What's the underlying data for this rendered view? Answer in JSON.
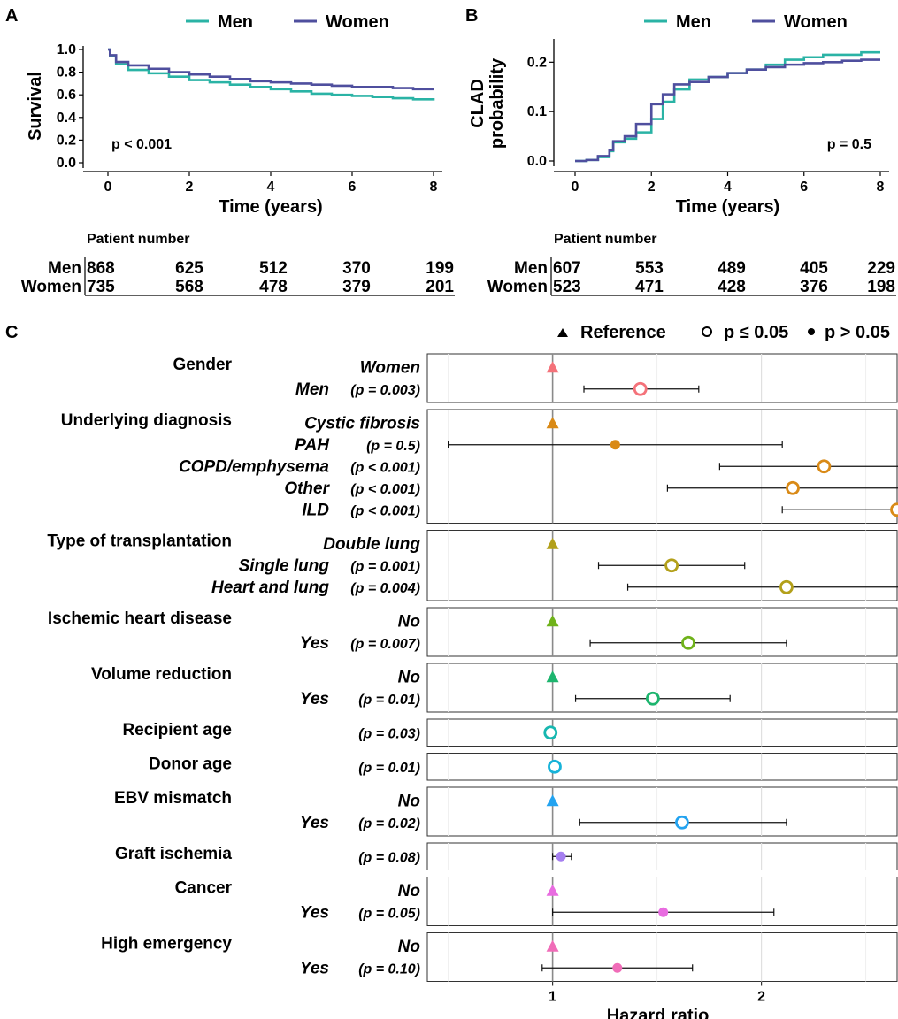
{
  "panels": {
    "A": {
      "letter": "A",
      "chart_data": {
        "type": "line",
        "xlabel": "Time (years)",
        "ylabel": "Survival",
        "xlim": [
          0,
          8
        ],
        "ylim": [
          0,
          1.0
        ],
        "x_ticks": [
          "0",
          "2",
          "4",
          "6",
          "8"
        ],
        "y_ticks": [
          "0.0",
          "0.2",
          "0.4",
          "0.6",
          "0.8",
          "1.0"
        ],
        "annotation": "p < 0.001",
        "legend": [
          "Men",
          "Women"
        ],
        "series": [
          {
            "name": "Men",
            "color": "#2ab3a5",
            "x": [
              0,
              0.05,
              0.2,
              0.5,
              1,
              1.5,
              2,
              2.5,
              3,
              3.5,
              4,
              4.5,
              5,
              5.5,
              6,
              6.5,
              7,
              7.5,
              8
            ],
            "y": [
              1.0,
              0.94,
              0.87,
              0.82,
              0.79,
              0.76,
              0.73,
              0.71,
              0.69,
              0.67,
              0.65,
              0.63,
              0.61,
              0.6,
              0.59,
              0.58,
              0.57,
              0.56,
              0.55
            ]
          },
          {
            "name": "Women",
            "color": "#4f4f9e",
            "x": [
              0,
              0.05,
              0.2,
              0.5,
              1,
              1.5,
              2,
              2.5,
              3,
              3.5,
              4,
              4.5,
              5,
              5.5,
              6,
              6.5,
              7,
              7.5,
              8
            ],
            "y": [
              1.0,
              0.95,
              0.89,
              0.86,
              0.83,
              0.8,
              0.78,
              0.76,
              0.74,
              0.72,
              0.71,
              0.7,
              0.69,
              0.68,
              0.67,
              0.67,
              0.66,
              0.65,
              0.65
            ]
          }
        ]
      },
      "risk_table": {
        "title": "Patient number",
        "rows": [
          {
            "label": "Men",
            "values": [
              "868",
              "625",
              "512",
              "370",
              "199"
            ]
          },
          {
            "label": "Women",
            "values": [
              "735",
              "568",
              "478",
              "379",
              "201"
            ]
          }
        ]
      }
    },
    "B": {
      "letter": "B",
      "chart_data": {
        "type": "line",
        "xlabel": "Time (years)",
        "ylabel_lines": [
          "CLAD",
          "probability"
        ],
        "xlim": [
          0,
          8
        ],
        "ylim": [
          0,
          0.24
        ],
        "x_ticks": [
          "0",
          "2",
          "4",
          "6",
          "8"
        ],
        "y_ticks": [
          "0.0",
          "0.1",
          "0.2"
        ],
        "annotation": "p = 0.5",
        "legend": [
          "Men",
          "Women"
        ],
        "series": [
          {
            "name": "Men",
            "color": "#2ab3a5",
            "x": [
              0,
              0.3,
              0.6,
              0.9,
              1.0,
              1.3,
              1.6,
              2.0,
              2.3,
              2.6,
              3.0,
              3.5,
              4.0,
              4.5,
              5.0,
              5.5,
              6.0,
              6.5,
              7.0,
              7.5,
              8.0
            ],
            "y": [
              0,
              0.002,
              0.008,
              0.02,
              0.038,
              0.045,
              0.058,
              0.085,
              0.12,
              0.145,
              0.165,
              0.17,
              0.178,
              0.185,
              0.195,
              0.205,
              0.21,
              0.215,
              0.215,
              0.22,
              0.22
            ]
          },
          {
            "name": "Women",
            "color": "#4f4f9e",
            "x": [
              0,
              0.3,
              0.6,
              0.9,
              1.0,
              1.3,
              1.6,
              2.0,
              2.3,
              2.6,
              3.0,
              3.5,
              4.0,
              4.5,
              5.0,
              5.5,
              6.0,
              6.5,
              7.0,
              7.5,
              8.0
            ],
            "y": [
              0,
              0.002,
              0.01,
              0.022,
              0.04,
              0.05,
              0.075,
              0.115,
              0.135,
              0.155,
              0.16,
              0.17,
              0.178,
              0.185,
              0.19,
              0.195,
              0.198,
              0.2,
              0.203,
              0.205,
              0.205
            ]
          }
        ]
      },
      "risk_table": {
        "title": "Patient number",
        "rows": [
          {
            "label": "Men",
            "values": [
              "607",
              "553",
              "489",
              "405",
              "229"
            ]
          },
          {
            "label": "Women",
            "values": [
              "523",
              "471",
              "428",
              "376",
              "198"
            ]
          }
        ]
      }
    },
    "C": {
      "letter": "C",
      "chart_data": {
        "type": "scatter",
        "subtype": "forest",
        "xlabel": "Hazard ratio",
        "xlim": [
          0.4,
          2.65
        ],
        "x_ticks": [
          "1",
          "2"
        ],
        "reference_line": 1,
        "legend": [
          "Reference",
          "p ≤ 0.05",
          "p > 0.05"
        ],
        "groups": [
          {
            "name": "Gender",
            "color": "#f4727a",
            "rows": [
              {
                "label": "Women",
                "p": "",
                "ref": true,
                "hr": 1
              },
              {
                "label": "Men",
                "p": "(p = 0.003)",
                "hr": 1.42,
                "lo": 1.15,
                "hi": 1.7,
                "sig": true
              }
            ]
          },
          {
            "name": "Underlying diagnosis",
            "color": "#d98a17",
            "rows": [
              {
                "label": "Cystic fibrosis",
                "p": "",
                "ref": true,
                "hr": 1
              },
              {
                "label": "PAH",
                "p": "(p = 0.5)",
                "hr": 1.3,
                "lo": 0.5,
                "hi": 2.1,
                "sig": false
              },
              {
                "label": "COPD/emphysema",
                "p": "(p < 0.001)",
                "hr": 2.3,
                "lo": 1.8,
                "hi": 2.8,
                "sig": true
              },
              {
                "label": "Other",
                "p": "(p < 0.001)",
                "hr": 2.15,
                "lo": 1.55,
                "hi": 2.75,
                "sig": true
              },
              {
                "label": "ILD",
                "p": "(p < 0.001)",
                "hr": 2.65,
                "lo": 2.1,
                "hi": 3.15,
                "sig": true
              }
            ]
          },
          {
            "name": "Type of transplantation",
            "color": "#b3a01a",
            "rows": [
              {
                "label": "Double lung",
                "p": "",
                "ref": true,
                "hr": 1
              },
              {
                "label": "Single lung",
                "p": "(p = 0.001)",
                "hr": 1.57,
                "lo": 1.22,
                "hi": 1.92,
                "sig": true
              },
              {
                "label": "Heart and lung",
                "p": "(p = 0.004)",
                "hr": 2.12,
                "lo": 1.36,
                "hi": 2.83,
                "sig": true
              }
            ]
          },
          {
            "name": "Ischemic heart disease",
            "color": "#6fb21a",
            "rows": [
              {
                "label": "No",
                "p": "",
                "ref": true,
                "hr": 1
              },
              {
                "label": "Yes",
                "p": "(p = 0.007)",
                "hr": 1.65,
                "lo": 1.18,
                "hi": 2.12,
                "sig": true
              }
            ]
          },
          {
            "name": "Volume reduction",
            "color": "#1db56e",
            "rows": [
              {
                "label": "No",
                "p": "",
                "ref": true,
                "hr": 1
              },
              {
                "label": "Yes",
                "p": "(p = 0.01)",
                "hr": 1.48,
                "lo": 1.11,
                "hi": 1.85,
                "sig": true
              }
            ]
          },
          {
            "name": "Recipient age",
            "color": "#17b7b0",
            "rows": [
              {
                "label": "",
                "p": "(p = 0.03)",
                "hr": 0.99,
                "lo": 0.98,
                "hi": 1.0,
                "sig": true
              }
            ]
          },
          {
            "name": "Donor age",
            "color": "#17b3d9",
            "rows": [
              {
                "label": "",
                "p": "(p = 0.01)",
                "hr": 1.01,
                "lo": 1.0,
                "hi": 1.02,
                "sig": true
              }
            ]
          },
          {
            "name": "EBV mismatch",
            "color": "#23a3f0",
            "rows": [
              {
                "label": "No",
                "p": "",
                "ref": true,
                "hr": 1
              },
              {
                "label": "Yes",
                "p": "(p = 0.02)",
                "hr": 1.62,
                "lo": 1.13,
                "hi": 2.12,
                "sig": true
              }
            ]
          },
          {
            "name": "Graft ischemia",
            "color": "#a57ff0",
            "rows": [
              {
                "label": "",
                "p": "(p = 0.08)",
                "hr": 1.04,
                "lo": 1.0,
                "hi": 1.09,
                "sig": false
              }
            ]
          },
          {
            "name": "Cancer",
            "color": "#e86ce0",
            "rows": [
              {
                "label": "No",
                "p": "",
                "ref": true,
                "hr": 1
              },
              {
                "label": "Yes",
                "p": "(p = 0.05)",
                "hr": 1.53,
                "lo": 1.0,
                "hi": 2.06,
                "sig": false
              }
            ]
          },
          {
            "name": "High emergency",
            "color": "#f06cb8",
            "rows": [
              {
                "label": "No",
                "p": "",
                "ref": true,
                "hr": 1
              },
              {
                "label": "Yes",
                "p": "(p = 0.10)",
                "hr": 1.31,
                "lo": 0.95,
                "hi": 1.67,
                "sig": false
              }
            ]
          }
        ]
      }
    }
  }
}
